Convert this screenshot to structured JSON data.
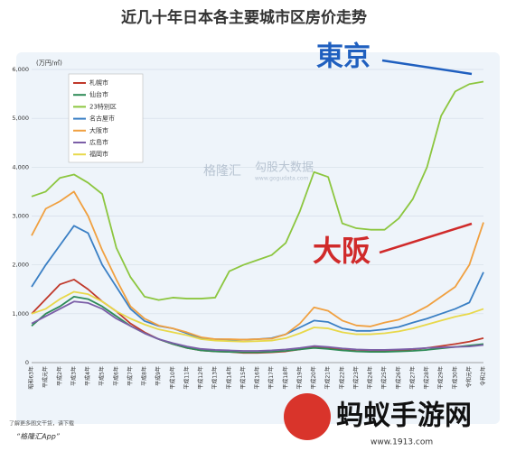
{
  "chart_data": {
    "type": "line",
    "title": "近几十年日本各主要城市区房价走势",
    "y_unit": "(万円/㎡)",
    "categories": [
      "昭和63年",
      "平成元年",
      "平成2年",
      "平成3年",
      "平成4年",
      "平成5年",
      "平成6年",
      "平成7年",
      "平成8年",
      "平成9年",
      "平成10年",
      "平成11年",
      "平成12年",
      "平成13年",
      "平成14年",
      "平成15年",
      "平成16年",
      "平成17年",
      "平成18年",
      "平成19年",
      "平成20年",
      "平成21年",
      "平成22年",
      "平成23年",
      "平成24年",
      "平成25年",
      "平成26年",
      "平成27年",
      "平成28年",
      "平成29年",
      "平成30年",
      "令和元年",
      "令和2年"
    ],
    "series": [
      {
        "name": "札幌市",
        "color": "#c0392b",
        "values": [
          1000,
          1300,
          1600,
          1700,
          1500,
          1250,
          1050,
          800,
          620,
          480,
          380,
          300,
          250,
          230,
          220,
          200,
          200,
          210,
          230,
          270,
          330,
          300,
          260,
          240,
          230,
          240,
          250,
          270,
          300,
          340,
          380,
          430,
          500
        ]
      },
      {
        "name": "仙台市",
        "color": "#2e8b57",
        "values": [
          750,
          1000,
          1150,
          1350,
          1300,
          1150,
          950,
          750,
          600,
          480,
          380,
          300,
          250,
          230,
          220,
          210,
          210,
          220,
          240,
          270,
          300,
          280,
          250,
          230,
          220,
          220,
          230,
          240,
          260,
          290,
          320,
          350,
          380
        ]
      },
      {
        "name": "23特別区",
        "color": "#8cc63f",
        "values": [
          3400,
          3500,
          3780,
          3850,
          3680,
          3450,
          2350,
          1750,
          1350,
          1280,
          1330,
          1310,
          1310,
          1330,
          1870,
          2000,
          2100,
          2200,
          2450,
          3100,
          3900,
          3800,
          2850,
          2750,
          2720,
          2720,
          2950,
          3350,
          4000,
          5050,
          5550,
          5700,
          5750
        ]
      },
      {
        "name": "名古屋市",
        "color": "#3a7fc4",
        "values": [
          1550,
          2000,
          2400,
          2800,
          2650,
          2000,
          1550,
          1100,
          850,
          750,
          700,
          600,
          500,
          480,
          470,
          470,
          480,
          500,
          580,
          720,
          860,
          830,
          700,
          650,
          650,
          680,
          730,
          820,
          900,
          1000,
          1100,
          1230,
          1850
        ]
      },
      {
        "name": "大阪市",
        "color": "#f0a040",
        "values": [
          2600,
          3150,
          3300,
          3500,
          3000,
          2300,
          1700,
          1150,
          900,
          760,
          700,
          620,
          520,
          480,
          480,
          470,
          480,
          490,
          580,
          800,
          1130,
          1060,
          860,
          760,
          740,
          820,
          880,
          1000,
          1150,
          1350,
          1550,
          2000,
          2870
        ]
      },
      {
        "name": "広島市",
        "color": "#7b5ea7",
        "values": [
          800,
          950,
          1100,
          1250,
          1220,
          1100,
          900,
          750,
          600,
          480,
          400,
          330,
          280,
          260,
          250,
          240,
          240,
          250,
          270,
          300,
          340,
          320,
          290,
          270,
          260,
          260,
          270,
          280,
          300,
          310,
          320,
          330,
          360
        ]
      },
      {
        "name": "福岡市",
        "color": "#e8d84a",
        "values": [
          1000,
          1100,
          1300,
          1450,
          1400,
          1250,
          1050,
          900,
          780,
          680,
          620,
          560,
          480,
          450,
          440,
          430,
          440,
          450,
          500,
          600,
          720,
          700,
          620,
          580,
          580,
          600,
          640,
          700,
          780,
          860,
          940,
          1000,
          1100
        ]
      }
    ],
    "ylim": [
      0,
      6000
    ],
    "yticks": [
      0,
      {
        "value": 1000,
        "label": "1,000"
      },
      {
        "value": 2000,
        "label": "2,000"
      },
      {
        "value": 3000,
        "label": "3,000"
      },
      {
        "value": 4000,
        "label": "4,000"
      },
      {
        "value": 5000,
        "label": "5,000"
      },
      {
        "value": 6000,
        "label": "6,000"
      }
    ],
    "grid": true,
    "annotations": [
      "東京",
      "大阪"
    ],
    "watermarks": [
      "格隆汇",
      "勾股大数据",
      "www.gogudata.com"
    ]
  },
  "footer": {
    "note": "了解更多图文干货，请下载",
    "app": "“格隆汇App”",
    "site": "蚂蚁手游网",
    "url": "www.1913.com"
  }
}
